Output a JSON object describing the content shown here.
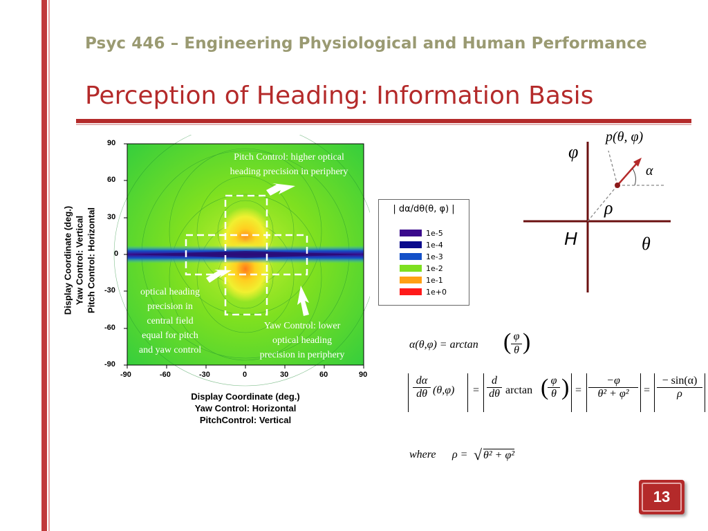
{
  "slide": {
    "header": "Psyc 446 – Engineering Physiological and Human Performance",
    "title": "Perception of Heading: Information Basis",
    "page_number": "13"
  },
  "plot": {
    "x_ticks": [
      "-90",
      "-60",
      "-30",
      "0",
      "30",
      "60",
      "90"
    ],
    "y_ticks": [
      "90",
      "60",
      "30",
      "0",
      "-30",
      "-60",
      "-90"
    ],
    "x_title_lines": [
      "Display Coordinate (deg.)",
      "Yaw Control: Horizontal",
      "PitchControl: Vertical"
    ],
    "y_title_lines": [
      "Display Coordinate (deg.)",
      "Yaw Control: Vertical",
      "Pitch Control: Horizontal"
    ],
    "annotations": {
      "top_right": [
        "Pitch Control: higher optical",
        "heading precision in periphery"
      ],
      "bottom_left": [
        "optical heading",
        "precision in",
        "central field",
        "equal for pitch",
        "and yaw control"
      ],
      "bottom_right": [
        "Yaw Control: lower",
        "optical heading",
        "precision in periphery"
      ]
    }
  },
  "legend": {
    "title": "| dα/dθ(θ, φ) |",
    "items": [
      {
        "label": "1e-5",
        "color": "#3a0a8c"
      },
      {
        "label": "1e-4",
        "color": "#0a0a8c"
      },
      {
        "label": "1e-3",
        "color": "#1450c8"
      },
      {
        "label": "1e-2",
        "color": "#7ee020"
      },
      {
        "label": "1e-1",
        "color": "#ffa014"
      },
      {
        "label": "1e+0",
        "color": "#ff1a1a"
      }
    ]
  },
  "diagram": {
    "phi": "φ",
    "p_label": "p(θ, φ)",
    "alpha": "α",
    "rho": "ρ",
    "H": "H",
    "theta": "θ"
  },
  "equations": {
    "eq1_lhs": "α(θ,φ) = arctan",
    "eq1_num": "φ",
    "eq1_den": "θ",
    "eq2_lhs_num": "dα",
    "eq2_lhs_den": "dθ",
    "eq2_args": "(θ,φ)",
    "eq2_d_num": "d",
    "eq2_d_den": "dθ",
    "eq2_arctan": "arctan",
    "eq2_frac_num": "φ",
    "eq2_frac_den": "θ",
    "eq2_r1_num": "−φ",
    "eq2_r1_den": "θ² + φ²",
    "eq2_r2_num": "− sin(α)",
    "eq2_r2_den": "ρ",
    "where_text": "where",
    "where_rho": "ρ =",
    "where_sqrt": "θ² + φ²"
  },
  "colors": {
    "accent_red": "#b42a2a",
    "header_olive": "#9a9a72"
  }
}
